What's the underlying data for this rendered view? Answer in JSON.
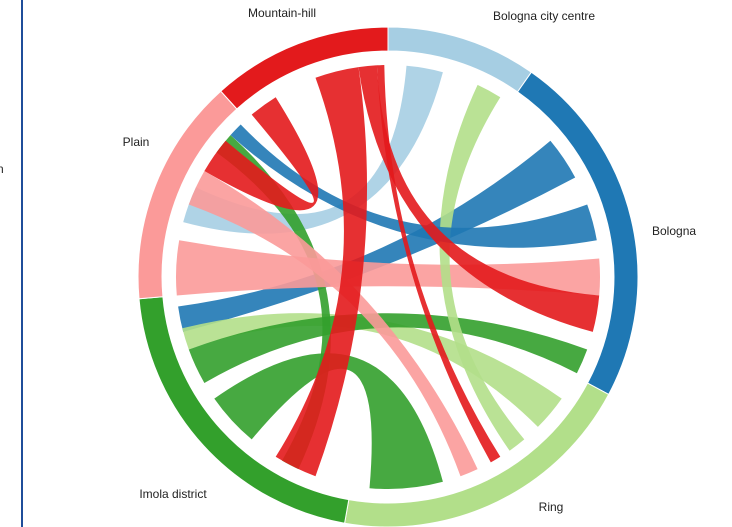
{
  "edge_label": "n",
  "nodes": [
    {
      "label": "Mountain-hill",
      "color": "#e31a1c"
    },
    {
      "label": "Bologna city centre",
      "color": "#a6cee3"
    },
    {
      "label": "Bologna",
      "color": "#1f78b4"
    },
    {
      "label": "Ring",
      "color": "#b2df8a"
    },
    {
      "label": "Imola district",
      "color": "#33a02c"
    },
    {
      "label": "Plain",
      "color": "#fb9a99"
    }
  ]
}
